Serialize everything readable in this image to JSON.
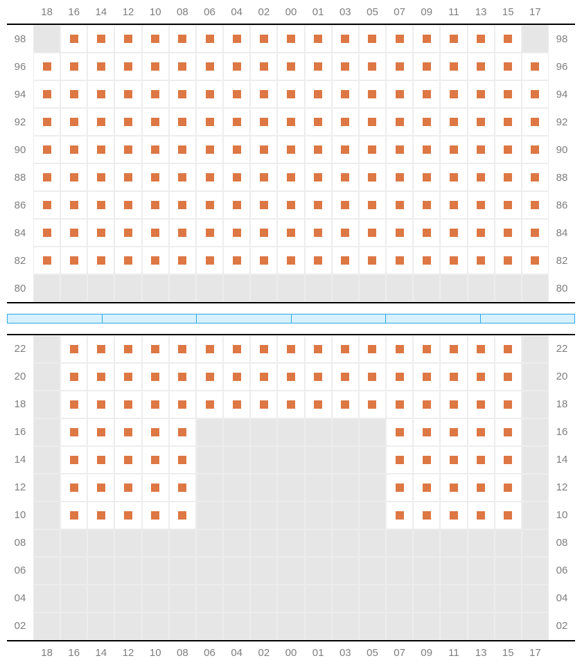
{
  "columns": [
    "18",
    "16",
    "14",
    "12",
    "10",
    "08",
    "06",
    "04",
    "02",
    "00",
    "01",
    "03",
    "05",
    "07",
    "09",
    "11",
    "13",
    "15",
    "17"
  ],
  "seat_color": "#dd7744",
  "empty_bg": "#e6e6e6",
  "border_color": "#ededed",
  "divider_border": "#2aa6e8",
  "divider_fill": "#d7f1ff",
  "label_color": "#7d7d7d",
  "label_fontsize": 15,
  "top_section": {
    "rows": [
      {
        "label": "98",
        "cells": "ESSSSSSSSSSSSSSSSSE"
      },
      {
        "label": "96",
        "cells": "SSSSSSSSSSSSSSSSSSS"
      },
      {
        "label": "94",
        "cells": "SSSSSSSSSSSSSSSSSSS"
      },
      {
        "label": "92",
        "cells": "SSSSSSSSSSSSSSSSSSS"
      },
      {
        "label": "90",
        "cells": "SSSSSSSSSSSSSSSSSSS"
      },
      {
        "label": "88",
        "cells": "SSSSSSSSSSSSSSSSSSS"
      },
      {
        "label": "86",
        "cells": "SSSSSSSSSSSSSSSSSSS"
      },
      {
        "label": "84",
        "cells": "SSSSSSSSSSSSSSSSSSS"
      },
      {
        "label": "82",
        "cells": "SSSSSSSSSSSSSSSSSSS"
      },
      {
        "label": "80",
        "cells": "EEEEEEEEEEEEEEEEEEE"
      }
    ]
  },
  "divider_segments": 6,
  "bottom_section": {
    "rows": [
      {
        "label": "22",
        "cells": "ESSSSSSSSSSSSSSSSSE"
      },
      {
        "label": "20",
        "cells": "ESSSSSSSSSSSSSSSSSE"
      },
      {
        "label": "18",
        "cells": "ESSSSSSSSSSSSSSSSSE"
      },
      {
        "label": "16",
        "cells": "ESSSSSEEEEEEESSSSSE"
      },
      {
        "label": "14",
        "cells": "ESSSSSEEEEEEESSSSSE"
      },
      {
        "label": "12",
        "cells": "ESSSSSEEEEEEESSSSSE"
      },
      {
        "label": "10",
        "cells": "ESSSSSEEEEEEESSSSSE"
      },
      {
        "label": "08",
        "cells": "EEEEEEEEEEEEEEEEEEE"
      },
      {
        "label": "06",
        "cells": "EEEEEEEEEEEEEEEEEEE"
      },
      {
        "label": "04",
        "cells": "EEEEEEEEEEEEEEEEEEE"
      },
      {
        "label": "02",
        "cells": "EEEEEEEEEEEEEEEEEEE"
      }
    ]
  }
}
